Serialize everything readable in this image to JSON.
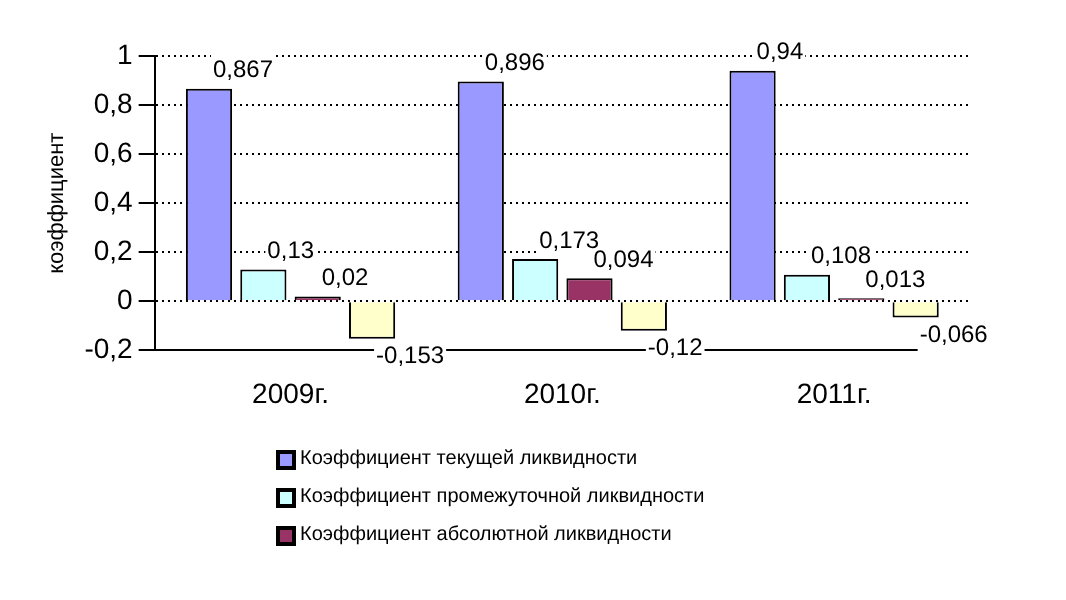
{
  "chart_data": {
    "type": "bar",
    "ylabel": "коэффициент",
    "categories": [
      "2009г.",
      "2010г.",
      "2011г."
    ],
    "series": [
      {
        "name": "Коэффициент текущей ликвидности",
        "color": "#9999ff",
        "values": [
          0.867,
          0.896,
          0.94
        ],
        "value_labels": [
          "0,867",
          "0,896",
          "0,94"
        ]
      },
      {
        "name": "Коэффициент промежуточной ликвидности",
        "color": "#ccffff",
        "values": [
          0.13,
          0.173,
          0.108
        ],
        "value_labels": [
          "0,13",
          "0,173",
          "0,108"
        ]
      },
      {
        "name": "Коэффициент абсолютной ликвидности",
        "color": "#993366",
        "values": [
          0.02,
          0.094,
          0.013
        ],
        "value_labels": [
          "0,02",
          "0,094",
          "0,013"
        ]
      },
      {
        "color": "#ffffcc",
        "values": [
          -0.153,
          -0.12,
          -0.066
        ],
        "value_labels": [
          "-0,153",
          "-0,12",
          "-0,066"
        ]
      }
    ],
    "ylim": [
      -0.2,
      1
    ],
    "yticks": [
      {
        "value": -0.2,
        "label": "-0,2"
      },
      0,
      {
        "value": 0.2,
        "label": "0,2"
      },
      {
        "value": 0.4,
        "label": "0,4"
      },
      {
        "value": 0.6,
        "label": "0,6"
      },
      {
        "value": 0.8,
        "label": "0,8"
      },
      1
    ],
    "grid": "y",
    "legend": "bottom"
  }
}
